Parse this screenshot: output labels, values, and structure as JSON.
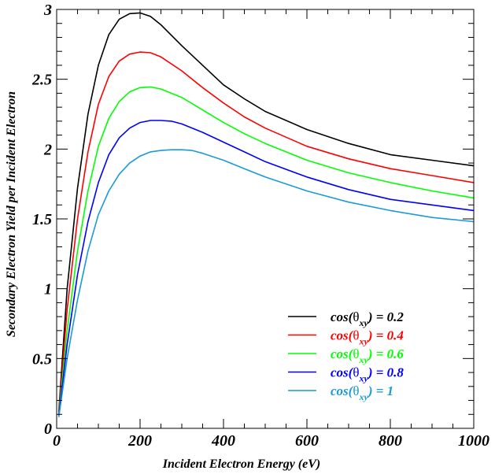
{
  "chart_data": {
    "type": "line",
    "title": "",
    "xlabel": "Incident Electron Energy (eV)",
    "ylabel": "Secondary Electron Yield per Incident Electron",
    "xlim": [
      0,
      1000
    ],
    "ylim": [
      0,
      3
    ],
    "x_ticks": [
      "0",
      "200",
      "400",
      "600",
      "800",
      "1000"
    ],
    "y_ticks": [
      "0",
      "0.5",
      "1",
      "1.5",
      "2",
      "2.5",
      "3"
    ],
    "grid": false,
    "legend_position": "bottom-right",
    "series": [
      {
        "name_parts": {
          "pre": "cos(",
          "theta": "θ",
          "sub": "xy",
          "post": ") = 0.2"
        },
        "color": "#000000",
        "x": [
          5,
          25,
          50,
          75,
          100,
          125,
          150,
          175,
          200,
          225,
          250,
          300,
          350,
          400,
          450,
          500,
          600,
          700,
          800,
          900,
          1000
        ],
        "y": [
          0.12,
          1.0,
          1.72,
          2.25,
          2.6,
          2.82,
          2.93,
          2.97,
          2.975,
          2.95,
          2.89,
          2.74,
          2.6,
          2.46,
          2.36,
          2.27,
          2.14,
          2.04,
          1.96,
          1.92,
          1.88
        ]
      },
      {
        "name_parts": {
          "pre": "cos(",
          "theta": "θ",
          "sub": "xy",
          "post": ") = 0.4"
        },
        "color": "#ff0000",
        "x": [
          5,
          25,
          50,
          75,
          100,
          125,
          150,
          175,
          200,
          225,
          250,
          300,
          350,
          400,
          450,
          500,
          600,
          700,
          800,
          900,
          1000
        ],
        "y": [
          0.11,
          0.85,
          1.5,
          1.98,
          2.32,
          2.52,
          2.63,
          2.68,
          2.695,
          2.69,
          2.66,
          2.56,
          2.44,
          2.33,
          2.23,
          2.15,
          2.02,
          1.93,
          1.86,
          1.81,
          1.76
        ]
      },
      {
        "name_parts": {
          "pre": "cos(",
          "theta": "θ",
          "sub": "xy",
          "post": ") = 0.6"
        },
        "color": "#00ff00",
        "x": [
          5,
          25,
          50,
          75,
          100,
          125,
          150,
          175,
          200,
          225,
          250,
          300,
          350,
          400,
          450,
          500,
          600,
          700,
          800,
          900,
          1000
        ],
        "y": [
          0.1,
          0.7,
          1.27,
          1.7,
          2.02,
          2.22,
          2.34,
          2.41,
          2.44,
          2.445,
          2.43,
          2.37,
          2.28,
          2.19,
          2.11,
          2.04,
          1.92,
          1.83,
          1.76,
          1.7,
          1.65
        ]
      },
      {
        "name_parts": {
          "pre": "cos(",
          "theta": "θ",
          "sub": "xy",
          "post": ") = 0.8"
        },
        "color": "#0000ff",
        "x": [
          5,
          25,
          50,
          75,
          100,
          125,
          150,
          175,
          200,
          225,
          250,
          275,
          300,
          350,
          400,
          450,
          500,
          600,
          700,
          800,
          900,
          1000
        ],
        "y": [
          0.09,
          0.6,
          1.1,
          1.48,
          1.76,
          1.96,
          2.08,
          2.15,
          2.19,
          2.205,
          2.205,
          2.2,
          2.18,
          2.12,
          2.05,
          1.98,
          1.91,
          1.8,
          1.71,
          1.64,
          1.6,
          1.56
        ]
      },
      {
        "name_parts": {
          "pre": "cos(",
          "theta": "θ",
          "sub": "xy",
          "post": ") = 1"
        },
        "color": "#1a9ad6",
        "x": [
          5,
          25,
          50,
          75,
          100,
          125,
          150,
          175,
          200,
          225,
          250,
          275,
          300,
          325,
          350,
          400,
          450,
          500,
          600,
          700,
          800,
          900,
          1000
        ],
        "y": [
          0.08,
          0.5,
          0.92,
          1.27,
          1.53,
          1.7,
          1.82,
          1.9,
          1.95,
          1.98,
          1.99,
          1.995,
          1.995,
          1.99,
          1.97,
          1.92,
          1.86,
          1.8,
          1.7,
          1.62,
          1.56,
          1.51,
          1.48
        ]
      }
    ]
  }
}
